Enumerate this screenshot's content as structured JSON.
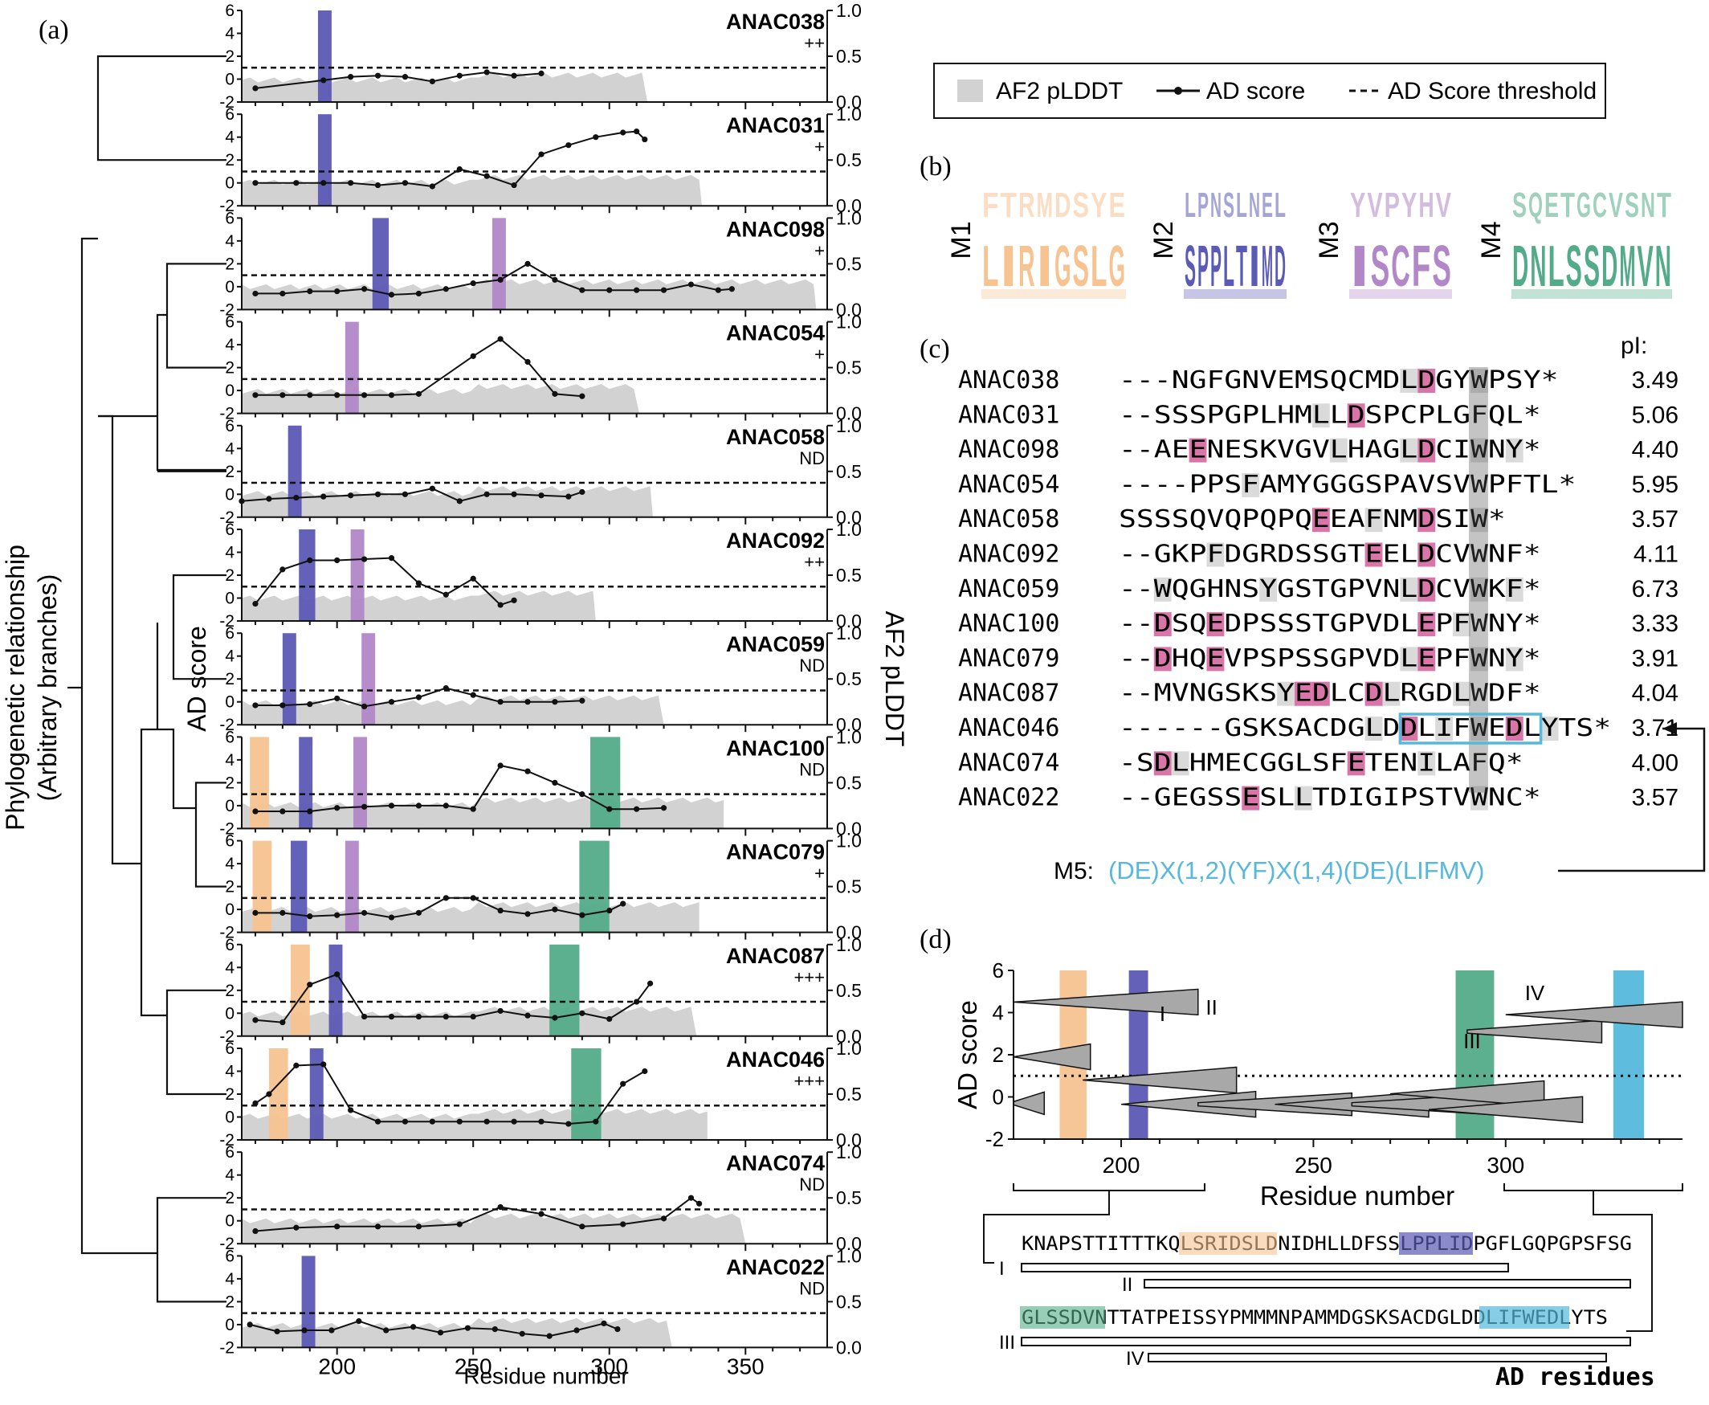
{
  "panel_labels": {
    "a": "(a)",
    "b": "(b)",
    "c": "(c)",
    "d": "(d)"
  },
  "panel_a": {
    "tree_label_line1": "Phylogenetic relationship",
    "tree_label_line2": "(Arbitrary branches)",
    "left_axis_label": "AD score",
    "right_axis_label": "AF2 pLDDT",
    "x_axis_label": "Residue number",
    "x_ticks": [
      "200",
      "250",
      "300",
      "350"
    ],
    "y_ticks_left": [
      "6",
      "4",
      "2",
      "0",
      "-2"
    ],
    "y_ticks_right": [
      "1.0",
      "0.5",
      "0.0"
    ]
  },
  "legend": {
    "items": [
      "AF2 pLDDT",
      "AD score",
      "AD Score threshold"
    ]
  },
  "chart_data": [
    {
      "type": "line",
      "panel": "a",
      "xlabel": "Residue number",
      "ylabel": "AD score",
      "y2label": "AF2 pLDDT",
      "xlim": [
        165,
        380
      ],
      "ylim": [
        -2,
        6
      ],
      "y2lim": [
        0,
        1
      ],
      "threshold": 1,
      "colors": {
        "M1": "#f6c391",
        "M2": "#5b5ab4",
        "M3": "#b287c8",
        "M4": "#53ab89",
        "M5": "#55b8dc",
        "plddt": "#d2d2d2"
      },
      "proteins": [
        {
          "name": "ANAC038",
          "activity": "++",
          "plddt_end": 314,
          "motifs": [
            {
              "m": "M2",
              "from": 193,
              "to": 198
            }
          ],
          "ad_x": [
            170,
            195,
            205,
            215,
            225,
            235,
            245,
            255,
            265,
            275
          ],
          "ad_y": [
            -0.8,
            -0.1,
            0.2,
            0.3,
            0.2,
            -0.2,
            0.3,
            0.6,
            0.3,
            0.5
          ]
        },
        {
          "name": "ANAC031",
          "activity": "+",
          "plddt_end": 334,
          "motifs": [
            {
              "m": "M2",
              "from": 193,
              "to": 198
            }
          ],
          "ad_x": [
            170,
            185,
            195,
            205,
            215,
            225,
            235,
            245,
            255,
            265,
            275,
            285,
            295,
            305,
            310,
            313
          ],
          "ad_y": [
            0,
            0,
            0,
            0,
            -0.2,
            0,
            -0.3,
            1.2,
            0.6,
            -0.2,
            2.5,
            3.3,
            4.0,
            4.4,
            4.5,
            3.8
          ]
        },
        {
          "name": "ANAC098",
          "activity": "+",
          "plddt_end": 376,
          "motifs": [
            {
              "m": "M2",
              "from": 213,
              "to": 219
            },
            {
              "m": "M3",
              "from": 257,
              "to": 262
            }
          ],
          "ad_x": [
            170,
            180,
            190,
            200,
            210,
            220,
            230,
            240,
            250,
            260,
            270,
            280,
            290,
            300,
            310,
            320,
            330,
            340,
            345
          ],
          "ad_y": [
            -0.6,
            -0.6,
            -0.4,
            -0.4,
            -0.2,
            -0.7,
            -0.6,
            -0.2,
            0.3,
            0.6,
            2.0,
            0.6,
            -0.3,
            -0.3,
            -0.3,
            -0.3,
            0.2,
            -0.3,
            -0.2
          ]
        },
        {
          "name": "ANAC054",
          "activity": "+",
          "plddt_end": 311,
          "motifs": [
            {
              "m": "M3",
              "from": 203,
              "to": 208
            }
          ],
          "ad_x": [
            170,
            180,
            190,
            200,
            210,
            220,
            230,
            250,
            260,
            270,
            280,
            290
          ],
          "ad_y": [
            -0.4,
            -0.4,
            -0.4,
            -0.4,
            -0.4,
            -0.4,
            -0.3,
            3.0,
            4.5,
            2.5,
            -0.3,
            -0.5
          ]
        },
        {
          "name": "ANAC058",
          "activity": "ND",
          "plddt_end": 316,
          "motifs": [
            {
              "m": "M2",
              "from": 182,
              "to": 187
            }
          ],
          "ad_x": [
            165,
            175,
            185,
            195,
            205,
            215,
            225,
            235,
            245,
            255,
            265,
            275,
            285,
            290
          ],
          "ad_y": [
            -0.6,
            -0.4,
            -0.3,
            -0.2,
            -0.1,
            0,
            0,
            0.5,
            -0.6,
            0,
            0,
            -0.1,
            -0.2,
            0.2
          ]
        },
        {
          "name": "ANAC092",
          "activity": "++",
          "plddt_end": 295,
          "motifs": [
            {
              "m": "M2",
              "from": 186,
              "to": 192
            },
            {
              "m": "M3",
              "from": 205,
              "to": 210
            }
          ],
          "ad_x": [
            170,
            180,
            190,
            200,
            210,
            220,
            230,
            240,
            250,
            260,
            265
          ],
          "ad_y": [
            -0.5,
            2.5,
            3.3,
            3.3,
            3.4,
            3.5,
            1.3,
            0.3,
            1.7,
            -0.6,
            -0.2
          ]
        },
        {
          "name": "ANAC059",
          "activity": "ND",
          "plddt_end": 320,
          "motifs": [
            {
              "m": "M2",
              "from": 180,
              "to": 185
            },
            {
              "m": "M3",
              "from": 209,
              "to": 214
            }
          ],
          "ad_x": [
            170,
            180,
            190,
            200,
            210,
            220,
            230,
            240,
            250,
            260,
            270,
            280,
            290
          ],
          "ad_y": [
            -0.3,
            -0.3,
            -0.2,
            0.3,
            -0.4,
            0,
            0.4,
            1.2,
            0.6,
            0,
            0,
            0,
            0.1
          ]
        },
        {
          "name": "ANAC100",
          "activity": "ND",
          "plddt_end": 342,
          "motifs": [
            {
              "m": "M1",
              "from": 168,
              "to": 175
            },
            {
              "m": "M2",
              "from": 186,
              "to": 191
            },
            {
              "m": "M3",
              "from": 206,
              "to": 211
            },
            {
              "m": "M4",
              "from": 293,
              "to": 304
            }
          ],
          "ad_x": [
            170,
            180,
            190,
            200,
            210,
            220,
            230,
            240,
            250,
            260,
            270,
            280,
            290,
            300,
            310,
            320
          ],
          "ad_y": [
            -0.5,
            -0.5,
            -0.5,
            -0.2,
            -0.1,
            0,
            0,
            0,
            -0.3,
            3.5,
            3.0,
            2.0,
            1.0,
            -0.3,
            -0.3,
            -0.2
          ]
        },
        {
          "name": "ANAC079",
          "activity": "+",
          "plddt_end": 333,
          "motifs": [
            {
              "m": "M1",
              "from": 169,
              "to": 176
            },
            {
              "m": "M2",
              "from": 183,
              "to": 189
            },
            {
              "m": "M3",
              "from": 203,
              "to": 208
            },
            {
              "m": "M4",
              "from": 289,
              "to": 300
            }
          ],
          "ad_x": [
            170,
            180,
            190,
            200,
            210,
            220,
            230,
            240,
            250,
            260,
            270,
            280,
            290,
            300,
            305
          ],
          "ad_y": [
            -0.3,
            -0.3,
            -0.6,
            -0.5,
            -0.3,
            -0.7,
            -0.3,
            1.0,
            1.0,
            -0.1,
            -0.4,
            0,
            -0.5,
            -0.1,
            0.5
          ]
        },
        {
          "name": "ANAC087",
          "activity": "+++",
          "plddt_end": 332,
          "motifs": [
            {
              "m": "M1",
              "from": 183,
              "to": 190
            },
            {
              "m": "M2",
              "from": 197,
              "to": 202
            },
            {
              "m": "M4",
              "from": 278,
              "to": 289
            }
          ],
          "ad_x": [
            170,
            180,
            190,
            200,
            210,
            220,
            230,
            240,
            250,
            260,
            270,
            280,
            290,
            300,
            310,
            315
          ],
          "ad_y": [
            -0.6,
            -0.8,
            2.5,
            3.4,
            -0.3,
            -0.3,
            -0.3,
            -0.3,
            -0.3,
            0.2,
            -0.2,
            -0.4,
            0,
            -0.5,
            1.0,
            2.6
          ]
        },
        {
          "name": "ANAC046",
          "activity": "+++",
          "plddt_end": 336,
          "motifs": [
            {
              "m": "M1",
              "from": 175,
              "to": 182
            },
            {
              "m": "M2",
              "from": 190,
              "to": 195
            },
            {
              "m": "M4",
              "from": 286,
              "to": 297
            }
          ],
          "ad_x": [
            170,
            175,
            185,
            195,
            205,
            215,
            225,
            235,
            245,
            255,
            265,
            275,
            285,
            295,
            305,
            313
          ],
          "ad_y": [
            1.2,
            2.0,
            4.5,
            4.6,
            0.6,
            -0.4,
            -0.4,
            -0.4,
            -0.4,
            -0.4,
            -0.4,
            -0.4,
            -0.6,
            -0.4,
            2.9,
            4.0
          ]
        },
        {
          "name": "ANAC074",
          "activity": "ND",
          "plddt_end": 350,
          "motifs": [],
          "ad_x": [
            170,
            185,
            200,
            215,
            230,
            245,
            260,
            275,
            290,
            305,
            320,
            330,
            333
          ],
          "ad_y": [
            -0.9,
            -0.6,
            -0.5,
            -0.5,
            -0.5,
            -0.3,
            1.2,
            0.6,
            -0.5,
            -0.3,
            0.2,
            2.0,
            1.5
          ]
        },
        {
          "name": "ANAC022",
          "activity": "ND",
          "plddt_end": 323,
          "motifs": [
            {
              "m": "M2",
              "from": 187,
              "to": 192
            }
          ],
          "ad_x": [
            168,
            178,
            188,
            198,
            208,
            218,
            228,
            238,
            248,
            258,
            268,
            278,
            288,
            298,
            303
          ],
          "ad_y": [
            0,
            -0.6,
            -0.5,
            -0.5,
            0.3,
            -0.5,
            -0.2,
            -0.7,
            -0.3,
            -0.4,
            -0.8,
            -1.0,
            -0.5,
            0.1,
            -0.4
          ]
        }
      ]
    },
    {
      "type": "scatter",
      "panel": "d",
      "xlabel": "Residue number",
      "ylabel": "AD score",
      "xlim": [
        172,
        346
      ],
      "ylim": [
        -2,
        6
      ],
      "x_ticks": [
        200,
        250,
        300
      ],
      "y_ticks": [
        6,
        4,
        2,
        0,
        -2
      ],
      "threshold": 1,
      "motif_bars": [
        {
          "m": "M1",
          "from": 184,
          "to": 191
        },
        {
          "m": "M2",
          "from": 202,
          "to": 207
        },
        {
          "m": "M4",
          "from": 287,
          "to": 297
        },
        {
          "m": "M5",
          "from": 328,
          "to": 336
        }
      ],
      "tiles": [
        {
          "from": 172,
          "to": 220,
          "y": 4.5,
          "skew": 0.4
        },
        {
          "from": 172,
          "to": 192,
          "y": 1.9,
          "skew": 0.4
        },
        {
          "from": 172,
          "to": 180,
          "y": -0.3,
          "skew": 0.3
        },
        {
          "from": 190,
          "to": 230,
          "y": 0.8,
          "skew": 0.4
        },
        {
          "from": 200,
          "to": 235,
          "y": -0.35,
          "skew": 0.4
        },
        {
          "from": 220,
          "to": 260,
          "y": -0.35,
          "skew": 0.3
        },
        {
          "from": 240,
          "to": 280,
          "y": -0.35,
          "skew": 0.4
        },
        {
          "from": 260,
          "to": 300,
          "y": -0.35,
          "skew": 0.3
        },
        {
          "from": 270,
          "to": 310,
          "y": 0.15,
          "skew": 0.4
        },
        {
          "from": 280,
          "to": 320,
          "y": -0.6,
          "skew": 0.4
        },
        {
          "from": 290,
          "to": 325,
          "y": 3.1,
          "skew": 0.3
        },
        {
          "from": 300,
          "to": 346,
          "y": 3.9,
          "skew": 0.4
        }
      ],
      "tile_labels": [
        {
          "text": "I",
          "x": 210,
          "y": 3.6
        },
        {
          "text": "II",
          "x": 222,
          "y": 3.9
        },
        {
          "text": "III",
          "x": 289,
          "y": 2.3
        },
        {
          "text": "IV",
          "x": 305,
          "y": 4.6
        }
      ]
    }
  ],
  "panel_b": {
    "logos": [
      {
        "name": "M1",
        "letters": [
          "F",
          "T",
          "R",
          "M",
          "D",
          "S",
          "Y",
          "E",
          "L",
          "I",
          "R",
          "I",
          "G",
          "S",
          "L",
          "G"
        ],
        "color": "#f6c391"
      },
      {
        "name": "M2",
        "letters": [
          "L",
          "P",
          "N",
          "S",
          "L",
          "N",
          "E",
          "L",
          "S",
          "P",
          "P",
          "L",
          "T",
          "I",
          "M",
          "D"
        ],
        "color": "#5b5ab4"
      },
      {
        "name": "M3",
        "letters": [
          "Y",
          "V",
          "P",
          "Y",
          "H",
          "V",
          "I",
          "S",
          "C",
          "F",
          "S"
        ],
        "color": "#b287c8"
      },
      {
        "name": "M4",
        "letters": [
          "S",
          "Q",
          "E",
          "T",
          "G",
          "C",
          "V",
          "S",
          "N",
          "T",
          "D",
          "N",
          "L",
          "S",
          "S",
          "D",
          "M",
          "V",
          "N"
        ],
        "color": "#53ab89"
      }
    ]
  },
  "panel_c": {
    "pi_header": "pI:",
    "rows": [
      {
        "name": "ANAC038",
        "seq": "---NGFGNVEMSQCMDLDGYWPSY*",
        "pi": "3.49"
      },
      {
        "name": "ANAC031",
        "seq": "--SSSPGPLHMLLDSPCPLGFQL*",
        "pi": "5.06"
      },
      {
        "name": "ANAC098",
        "seq": "--AEENESKVGVLHAGLDCIWNY*",
        "pi": "4.40"
      },
      {
        "name": "ANAC054",
        "seq": "----PPSFAMYGGGSPAVSVWPFTL*",
        "pi": "5.95"
      },
      {
        "name": "ANAC058",
        "seq": "SSSSQVQPQPQEEAFNMDSIW*",
        "pi": "3.57"
      },
      {
        "name": "ANAC092",
        "seq": "--GKPFDGRDSSGTEELDCVWNF*",
        "pi": "4.11"
      },
      {
        "name": "ANAC059",
        "seq": "--WQGHNSYGSTGPVNLDCVWKF*",
        "pi": "6.73"
      },
      {
        "name": "ANAC100",
        "seq": "--DSQEDPSSSTGPVDLEPFWNY*",
        "pi": "3.33"
      },
      {
        "name": "ANAC079",
        "seq": "--DHQEVPSPSSGPVDLEPFWNY*",
        "pi": "3.91"
      },
      {
        "name": "ANAC087",
        "seq": "--MVNGSKSYEDLCDLRGDLWDF*",
        "pi": "4.04"
      },
      {
        "name": "ANAC046",
        "seq": "------GSKSACDGLDDLIFWEDLYTS*",
        "pi": "3.71"
      },
      {
        "name": "ANAC074",
        "seq": "-SDLHMECGGLSFETENILAFQ*",
        "pi": "4.00"
      },
      {
        "name": "ANAC022",
        "seq": "--GEGSSESLLTDIGIPSTVWNC*",
        "pi": "3.57"
      }
    ],
    "m5_prefix": "M5:",
    "m5_pattern": "(DE)X(1,2)(YF)X(1,4)(DE)(LIFMV)"
  },
  "panel_d": {
    "seq1": "KNAPSTTITTTKQLSRIDSLDNIDHLLDFSSLPPLIDPGFLGQPGPSFSG",
    "seq2": "GLSSDVNTTATPEISSYPMMMNPAMMDGSKSACDGLDDLIFWEDLYTS",
    "frag_labels": [
      "I",
      "II",
      "III",
      "IV"
    ],
    "ad_residues_label": "AD residues"
  }
}
